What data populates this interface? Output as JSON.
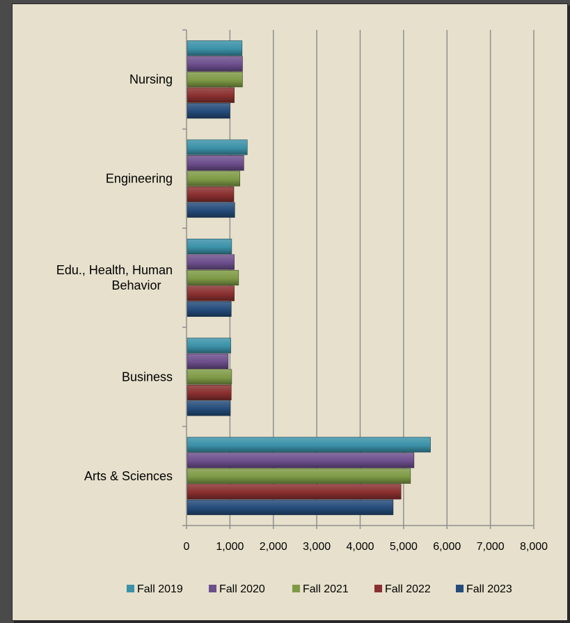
{
  "chart_data": {
    "type": "bar",
    "orientation": "horizontal",
    "categories": [
      "Arts & Sciences",
      "Business",
      "Edu., Health, Human Behavior",
      "Engineering",
      "Nursing"
    ],
    "category_lines": [
      [
        "Arts & Sciences"
      ],
      [
        "Business"
      ],
      [
        "Edu., Health, Human",
        "Behavior"
      ],
      [
        "Engineering"
      ],
      [
        "Nursing"
      ]
    ],
    "series": [
      {
        "name": "Fall 2019",
        "color": "#3a91a8",
        "values": [
          5620,
          1020,
          1040,
          1400,
          1280
        ]
      },
      {
        "name": "Fall 2020",
        "color": "#6c4e8c",
        "values": [
          5240,
          960,
          1100,
          1320,
          1290
        ]
      },
      {
        "name": "Fall 2021",
        "color": "#7e9a45",
        "values": [
          5160,
          1040,
          1200,
          1230,
          1290
        ]
      },
      {
        "name": "Fall 2022",
        "color": "#8a2f2f",
        "values": [
          4940,
          1030,
          1100,
          1090,
          1100
        ]
      },
      {
        "name": "Fall 2023",
        "color": "#244b7a",
        "values": [
          4760,
          1010,
          1030,
          1110,
          1000
        ]
      }
    ],
    "xlim": [
      0,
      8000
    ],
    "xticks": [
      0,
      1000,
      2000,
      3000,
      4000,
      5000,
      6000,
      7000,
      8000
    ],
    "xtick_labels": [
      "0",
      "1,000",
      "2,000",
      "3,000",
      "4,000",
      "5,000",
      "6,000",
      "7,000",
      "8,000"
    ],
    "grid": "vertical",
    "legend": "bottom",
    "title": "",
    "xlabel": "",
    "ylabel": ""
  }
}
